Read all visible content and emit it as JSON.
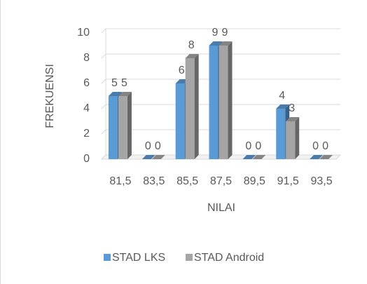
{
  "chart_data": {
    "type": "bar3d",
    "categories": [
      "81,5",
      "83,5",
      "85,5",
      "87,5",
      "89,5",
      "91,5",
      "93,5"
    ],
    "series": [
      {
        "name": "STAD LKS",
        "color": "#5b9bd5",
        "values": [
          5,
          0,
          6,
          9,
          0,
          4,
          0
        ]
      },
      {
        "name": "STAD Android",
        "color": "#a5a5a5",
        "values": [
          5,
          0,
          8,
          9,
          0,
          3,
          0
        ]
      }
    ],
    "xlabel": "NILAI",
    "ylabel": "FREKUENSI",
    "ylim": [
      0,
      10
    ],
    "yticks": [
      0,
      2,
      4,
      6,
      8,
      10
    ],
    "grid": true,
    "legend": "bottom"
  }
}
